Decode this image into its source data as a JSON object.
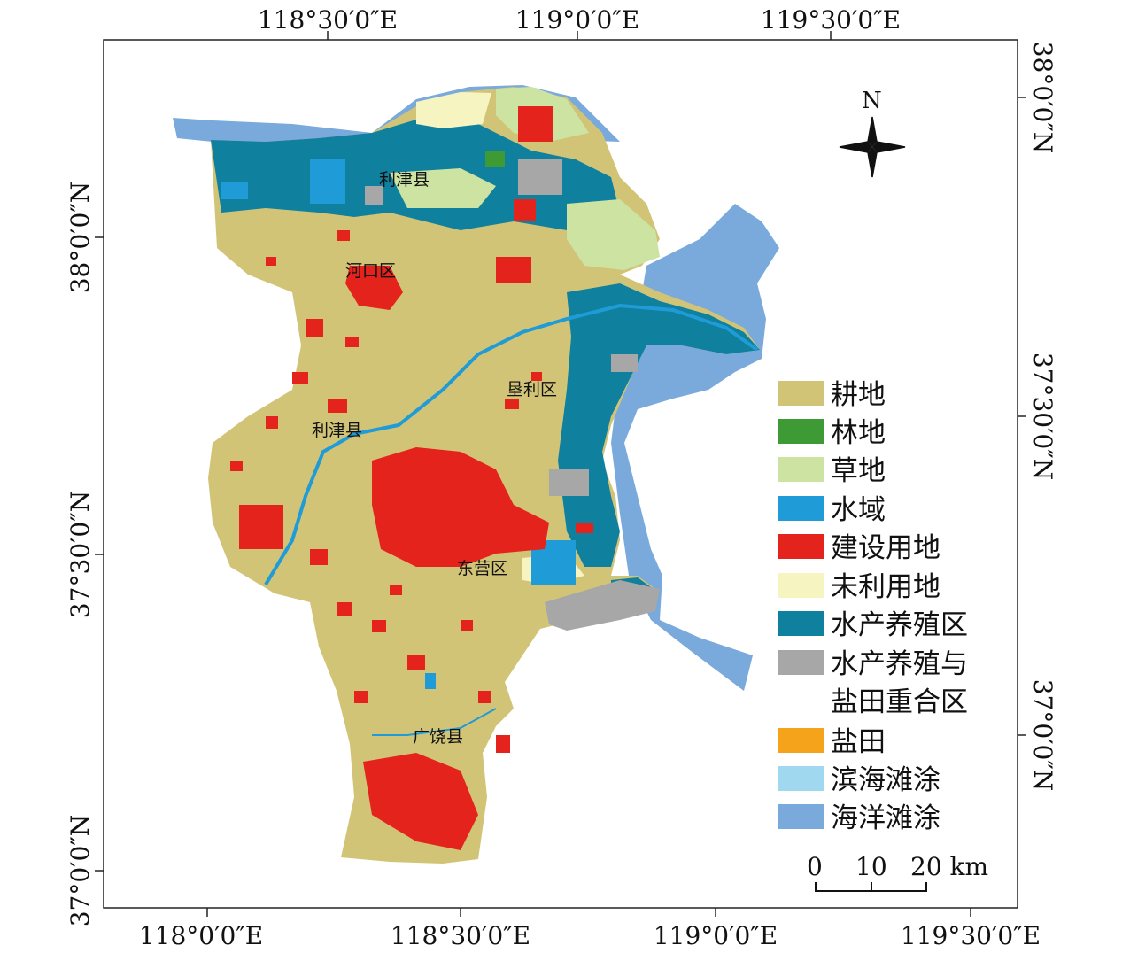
{
  "map": {
    "top_axis_labels": [
      "118°30′0″E",
      "119°0′0″E",
      "119°30′0″E"
    ],
    "bottom_axis_labels": [
      "118°0′0″E",
      "118°30′0″E",
      "119°0′0″E",
      "119°30′0″E"
    ],
    "left_axis_labels": [
      "38°0′0″N",
      "37°30′0″N",
      "37°0′0″N"
    ],
    "right_axis_labels": [
      "38°0′0″N",
      "37°30′0″N",
      "37°0′0″N"
    ],
    "north_label": "N",
    "place_labels": {
      "lijin_top": "利津县",
      "hekou": "河口区",
      "kenli": "垦利区",
      "lijin_mid": "利津县",
      "dongying": "东营区",
      "guangrao": "广饶县"
    },
    "scale_bar": {
      "labels": [
        "0",
        "10",
        "20 km"
      ]
    },
    "legend": [
      {
        "label": "耕地",
        "color": "#d2c477"
      },
      {
        "label": "林地",
        "color": "#3d9a35"
      },
      {
        "label": "草地",
        "color": "#cde3a2"
      },
      {
        "label": "水域",
        "color": "#1f9bd7"
      },
      {
        "label": "建设用地",
        "color": "#e3231c"
      },
      {
        "label": "未利用地",
        "color": "#f6f4c1"
      },
      {
        "label": "水产养殖区",
        "color": "#10809f"
      },
      {
        "label": "水产养殖与",
        "label2": "盐田重合区",
        "color": "#a7a7a7"
      },
      {
        "label": "盐田",
        "color": "#f4a31b"
      },
      {
        "label": "滨海滩涂",
        "color": "#9fd8ef"
      },
      {
        "label": "海洋滩涂",
        "color": "#7aa9dc"
      }
    ]
  }
}
